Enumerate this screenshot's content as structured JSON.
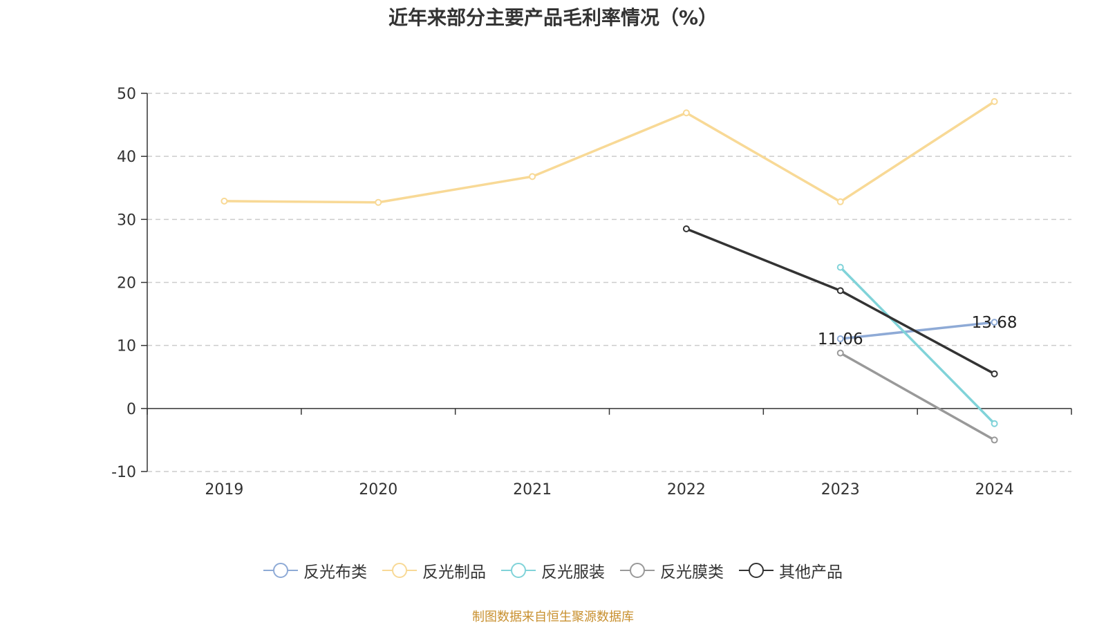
{
  "chart_data": {
    "type": "line",
    "title": "近年来部分主要产品毛利率情况（%）",
    "categories": [
      "2019",
      "2020",
      "2021",
      "2022",
      "2023",
      "2024"
    ],
    "ylim": [
      -10,
      50
    ],
    "yticks": [
      -10,
      0,
      10,
      20,
      30,
      40,
      50
    ],
    "grid": true,
    "legend_position": "bottom",
    "series": [
      {
        "name": "反光布类",
        "color": "#8eaad6",
        "values": [
          null,
          null,
          null,
          null,
          11.06,
          13.68
        ],
        "labels": [
          null,
          null,
          null,
          null,
          "11.06",
          "13.68"
        ]
      },
      {
        "name": "反光制品",
        "color": "#f8d996",
        "values": [
          32.9,
          32.7,
          36.8,
          46.9,
          32.8,
          48.7
        ]
      },
      {
        "name": "反光服装",
        "color": "#80d3d9",
        "values": [
          null,
          null,
          null,
          null,
          22.4,
          -2.4
        ]
      },
      {
        "name": "反光膜类",
        "color": "#999999",
        "values": [
          null,
          null,
          null,
          null,
          8.8,
          -5.0
        ]
      },
      {
        "name": "其他产品",
        "color": "#333333",
        "values": [
          null,
          null,
          null,
          28.5,
          18.7,
          5.5
        ]
      }
    ]
  },
  "footer": {
    "source": "制图数据来自恒生聚源数据库"
  }
}
